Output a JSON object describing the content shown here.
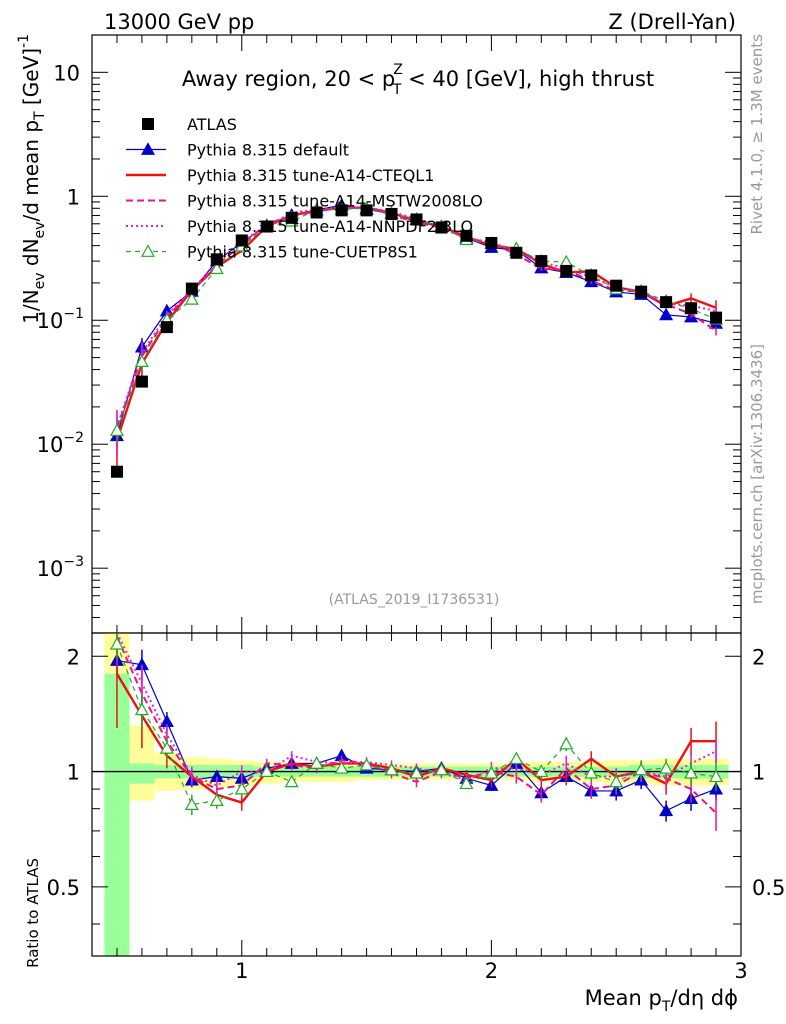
{
  "chart_data": {
    "type": "line",
    "header_left": "13000 GeV pp",
    "header_right": "Z (Drell-Yan)",
    "title": "Away region, 20 < p_T^Z < 40 [GeV], high thrust",
    "title_parts": {
      "pre": "Away region, 20 < p",
      "sup": "Z",
      "sub": "T",
      "post": " < 40 [GeV], high thrust"
    },
    "side_label_top": "Rivet 4.1.0, ≥ 1.3M events",
    "side_label_bottom": "mcplots.cern.ch [arXiv:1306.3436]",
    "analysis_label": "(ATLAS_2019_I1736531)",
    "ylabel": "1/N_ev dN_ev/d mean p_T [GeV]^-1",
    "ylabel_parts": {
      "a": "1/N",
      "a_sub": "ev",
      "b": " dN",
      "b_sub": "ev",
      "c": "/d mean p",
      "c_sub": "T",
      "d": " [GeV]",
      "d_sup": "-1"
    },
    "ratio_ylabel": "Ratio to ATLAS",
    "xlabel": "Mean p_T/dη dϕ",
    "xlabel_parts": {
      "a": "Mean p",
      "a_sub": "T",
      "b": "/dη dϕ"
    },
    "xlim": [
      0.4,
      3.0
    ],
    "ylim": [
      0.0003,
      20
    ],
    "yscale": "log",
    "ratio_ylim": [
      0.33,
      2.3
    ],
    "x_ticks": [
      {
        "v": 1,
        "label": "1"
      },
      {
        "v": 2,
        "label": "2"
      },
      {
        "v": 3,
        "label": "3"
      }
    ],
    "y_ticks": [
      {
        "v": 10,
        "base": "10",
        "exp": ""
      },
      {
        "v": 1,
        "base": "1",
        "exp": ""
      },
      {
        "v": 0.1,
        "base": "10",
        "exp": "−1"
      },
      {
        "v": 0.01,
        "base": "10",
        "exp": "−2"
      },
      {
        "v": 0.001,
        "base": "10",
        "exp": "−3"
      }
    ],
    "ratio_ticks": [
      {
        "v": 2,
        "label": "2"
      },
      {
        "v": 1,
        "label": "1"
      },
      {
        "v": 0.5,
        "label": "0.5"
      }
    ],
    "x": [
      0.5,
      0.6,
      0.7,
      0.8,
      0.9,
      1.0,
      1.1,
      1.2,
      1.3,
      1.4,
      1.5,
      1.6,
      1.7,
      1.8,
      1.9,
      2.0,
      2.1,
      2.2,
      2.3,
      2.4,
      2.5,
      2.6,
      2.7,
      2.8,
      2.9
    ],
    "data": {
      "name": "ATLAS",
      "values": [
        0.006,
        0.032,
        0.088,
        0.18,
        0.31,
        0.44,
        0.57,
        0.67,
        0.74,
        0.77,
        0.77,
        0.72,
        0.65,
        0.56,
        0.48,
        0.42,
        0.35,
        0.3,
        0.25,
        0.23,
        0.19,
        0.17,
        0.14,
        0.125,
        0.105
      ]
    },
    "band_edges": [
      0.45,
      0.55,
      0.65,
      0.75,
      0.85,
      0.95,
      1.05,
      1.15,
      1.25,
      1.35,
      1.45,
      1.55,
      1.65,
      1.75,
      1.85,
      1.95,
      2.05,
      2.15,
      2.25,
      2.35,
      2.45,
      2.55,
      2.65,
      2.75,
      2.85,
      2.95
    ],
    "band_green": [
      [
        0.33,
        1.8
      ],
      [
        0.93,
        1.05
      ],
      [
        0.96,
        1.04
      ],
      [
        0.96,
        1.04
      ],
      [
        0.96,
        1.04
      ],
      [
        0.96,
        1.04
      ],
      [
        0.97,
        1.03
      ],
      [
        0.97,
        1.03
      ],
      [
        0.97,
        1.03
      ],
      [
        0.97,
        1.03
      ],
      [
        0.97,
        1.03
      ],
      [
        0.97,
        1.03
      ],
      [
        0.97,
        1.03
      ],
      [
        0.97,
        1.03
      ],
      [
        0.97,
        1.03
      ],
      [
        0.97,
        1.03
      ],
      [
        0.97,
        1.03
      ],
      [
        0.97,
        1.03
      ],
      [
        0.97,
        1.03
      ],
      [
        0.97,
        1.03
      ],
      [
        0.97,
        1.03
      ],
      [
        0.96,
        1.04
      ],
      [
        0.96,
        1.04
      ],
      [
        0.96,
        1.04
      ],
      [
        0.96,
        1.04
      ]
    ],
    "band_yellow": [
      [
        0.33,
        2.3
      ],
      [
        0.84,
        1.32
      ],
      [
        0.89,
        1.12
      ],
      [
        0.9,
        1.09
      ],
      [
        0.91,
        1.08
      ],
      [
        0.92,
        1.07
      ],
      [
        0.93,
        1.06
      ],
      [
        0.94,
        1.06
      ],
      [
        0.94,
        1.06
      ],
      [
        0.94,
        1.06
      ],
      [
        0.95,
        1.05
      ],
      [
        0.95,
        1.05
      ],
      [
        0.95,
        1.05
      ],
      [
        0.95,
        1.05
      ],
      [
        0.95,
        1.05
      ],
      [
        0.95,
        1.05
      ],
      [
        0.95,
        1.05
      ],
      [
        0.94,
        1.06
      ],
      [
        0.94,
        1.06
      ],
      [
        0.94,
        1.06
      ],
      [
        0.93,
        1.07
      ],
      [
        0.93,
        1.07
      ],
      [
        0.92,
        1.08
      ],
      [
        0.92,
        1.08
      ],
      [
        0.92,
        1.08
      ]
    ],
    "series": [
      {
        "name": "Pythia 8.315 default",
        "color": "#0000cc",
        "dash": "",
        "width": 1.2,
        "marker": "triangle-filled",
        "ratio": [
          1.95,
          1.9,
          1.35,
          0.95,
          0.97,
          0.96,
          1.02,
          1.05,
          1.05,
          1.1,
          1.02,
          1.01,
          1.0,
          1.02,
          0.96,
          0.92,
          1.05,
          0.88,
          0.97,
          0.89,
          0.89,
          0.95,
          0.79,
          0.85,
          0.9
        ],
        "ratio_err": [
          0.15,
          0.18,
          0.08,
          0.04,
          0.03,
          0.03,
          0.02,
          0.02,
          0.02,
          0.02,
          0.02,
          0.02,
          0.02,
          0.02,
          0.03,
          0.03,
          0.03,
          0.04,
          0.04,
          0.04,
          0.05,
          0.05,
          0.05,
          0.06,
          0.06
        ]
      },
      {
        "name": "Pythia 8.315 tune-A14-CTEQL1",
        "color": "#ee1111",
        "dash": "",
        "width": 2.4,
        "marker": "none",
        "ratio": [
          1.8,
          1.4,
          1.1,
          0.97,
          0.87,
          0.83,
          1.0,
          1.05,
          1.03,
          1.05,
          1.05,
          1.02,
          0.97,
          1.02,
          0.98,
          0.95,
          1.08,
          0.95,
          0.97,
          1.08,
          0.97,
          1.0,
          0.93,
          1.2,
          1.2
        ],
        "ratio_err": [
          0.5,
          0.25,
          0.08,
          0.04,
          0.04,
          0.04,
          0.03,
          0.03,
          0.03,
          0.03,
          0.03,
          0.03,
          0.03,
          0.03,
          0.03,
          0.04,
          0.04,
          0.04,
          0.05,
          0.05,
          0.05,
          0.06,
          0.06,
          0.1,
          0.15
        ]
      },
      {
        "name": "Pythia 8.315 tune-A14-MSTW2008LO",
        "color": "#ee1188",
        "dash": "7,4",
        "width": 2.0,
        "marker": "none",
        "ratio": [
          2.25,
          1.6,
          1.2,
          0.97,
          0.9,
          0.92,
          1.05,
          1.04,
          1.02,
          1.07,
          1.05,
          0.99,
          0.94,
          1.0,
          0.96,
          1.0,
          0.97,
          0.87,
          1.02,
          0.9,
          0.92,
          1.0,
          0.96,
          0.9,
          0.78
        ],
        "ratio_err": [
          0.4,
          0.3,
          0.1,
          0.05,
          0.05,
          0.04,
          0.03,
          0.03,
          0.03,
          0.03,
          0.03,
          0.03,
          0.03,
          0.03,
          0.03,
          0.04,
          0.04,
          0.04,
          0.05,
          0.05,
          0.05,
          0.06,
          0.06,
          0.07,
          0.08
        ]
      },
      {
        "name": "Pythia 8.315 tune-A14-NNPDF2.3LO",
        "color": "#dd22dd",
        "dash": "2,3",
        "width": 2.0,
        "marker": "none",
        "ratio": [
          2.3,
          1.7,
          1.25,
          0.98,
          0.92,
          1.0,
          1.0,
          1.1,
          1.06,
          1.05,
          1.06,
          1.04,
          1.02,
          0.99,
          0.95,
          1.02,
          1.02,
          0.98,
          1.05,
          0.97,
          0.97,
          1.0,
          0.97,
          1.05,
          1.13
        ],
        "ratio_err": [
          0.3,
          0.2,
          0.08,
          0.05,
          0.05,
          0.04,
          0.03,
          0.03,
          0.03,
          0.03,
          0.03,
          0.03,
          0.03,
          0.03,
          0.03,
          0.04,
          0.04,
          0.04,
          0.05,
          0.05,
          0.05,
          0.06,
          0.06,
          0.07,
          0.08
        ]
      },
      {
        "name": "Pythia 8.315 tune-CUETP8S1",
        "color": "#22aa22",
        "dash": "5,4",
        "width": 1.2,
        "marker": "triangle-open",
        "ratio": [
          2.15,
          1.45,
          1.15,
          0.82,
          0.84,
          0.9,
          1.0,
          0.94,
          1.05,
          1.02,
          1.04,
          1.01,
          0.99,
          1.01,
          0.93,
          0.99,
          1.08,
          1.0,
          1.18,
          0.99,
          0.94,
          1.01,
          1.02,
          0.99,
          0.97
        ],
        "ratio_err": [
          0.2,
          0.15,
          0.08,
          0.05,
          0.04,
          0.04,
          0.03,
          0.03,
          0.03,
          0.03,
          0.03,
          0.03,
          0.03,
          0.03,
          0.03,
          0.04,
          0.04,
          0.04,
          0.05,
          0.05,
          0.05,
          0.06,
          0.06,
          0.07,
          0.08
        ]
      }
    ],
    "legend_placement": "top-left"
  },
  "colors": {
    "band_green": "#99ff99",
    "band_yellow": "#ffff99",
    "data": "#000000",
    "side_text": "#999999",
    "analysis_text": "#999999"
  }
}
